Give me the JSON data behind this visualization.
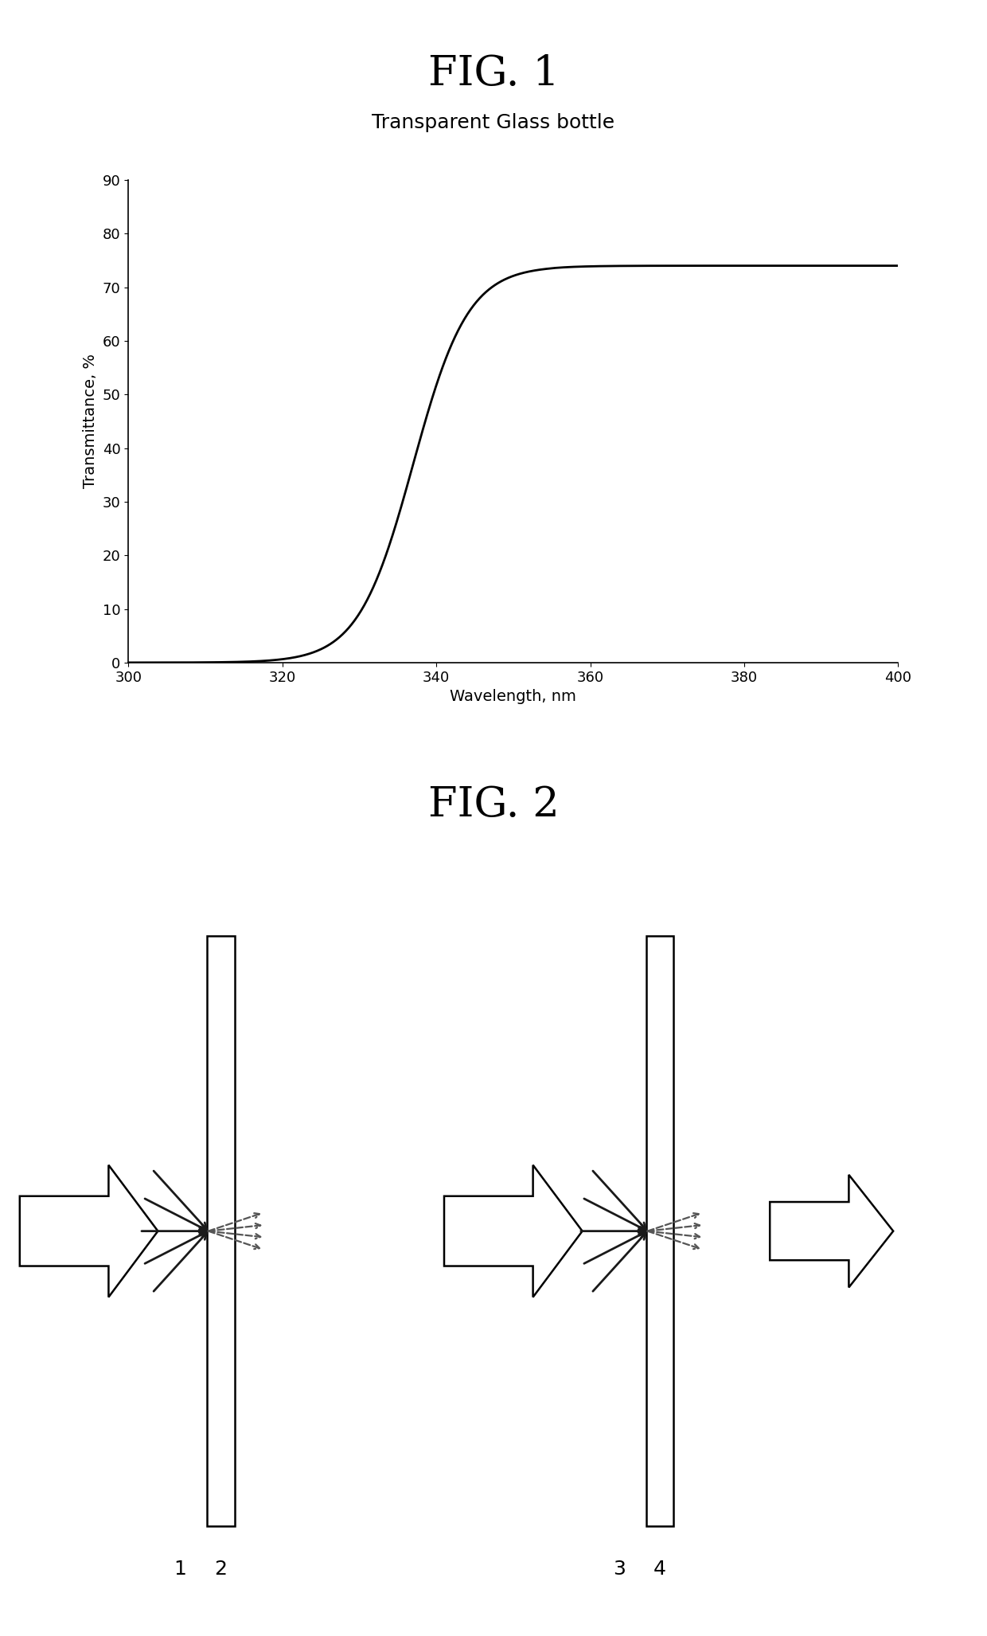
{
  "fig1_title": "FIG. 1",
  "fig1_subtitle": "Transparent Glass bottle",
  "fig2_title": "FIG. 2",
  "xlabel": "Wavelength, nm",
  "ylabel": "Transmittance, %",
  "xlim": [
    300,
    400
  ],
  "ylim": [
    0,
    90
  ],
  "xticks": [
    300,
    320,
    340,
    360,
    380,
    400
  ],
  "yticks": [
    0,
    10,
    20,
    30,
    40,
    50,
    60,
    70,
    80,
    90
  ],
  "line_color": "#000000",
  "bg_color": "#ffffff",
  "label1": "1",
  "label2": "2",
  "label3": "3",
  "label4": "4",
  "fig1_title_fontsize": 38,
  "fig1_subtitle_fontsize": 18,
  "fig2_title_fontsize": 38,
  "axis_fontsize": 14,
  "tick_fontsize": 13
}
